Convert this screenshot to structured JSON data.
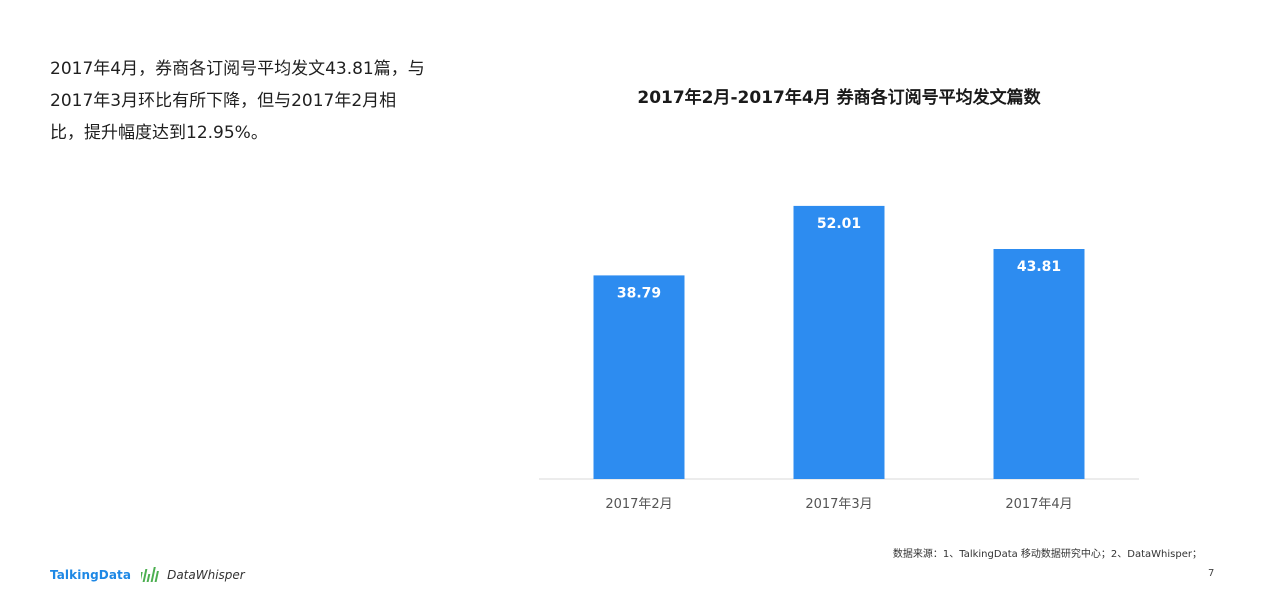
{
  "summary_text": "2017年4月，券商各订阅号平均发文43.81篇，与2017年3月环比有所下降，但与2017年2月相比，提升幅度达到12.95%。",
  "chart_data": {
    "type": "bar",
    "title": "2017年2月-2017年4月 券商各订阅号平均发文篇数",
    "categories": [
      "2017年2月",
      "2017年3月",
      "2017年4月"
    ],
    "values": [
      38.79,
      52.01,
      43.81
    ],
    "value_labels": [
      "38.79",
      "52.01",
      "43.81"
    ],
    "xlabel": "",
    "ylabel": "",
    "ylim": [
      0,
      60
    ],
    "grid": false,
    "bar_color": "#2d8cf0",
    "data_label_color": "#ffffff"
  },
  "footer": {
    "source": "数据来源：1、TalkingData 移动数据研究中心；2、DataWhisper；",
    "brand_left": "TalkingData",
    "brand_right": "DataWhisper",
    "page_number": "7",
    "brand_color": "#1e88e5"
  }
}
